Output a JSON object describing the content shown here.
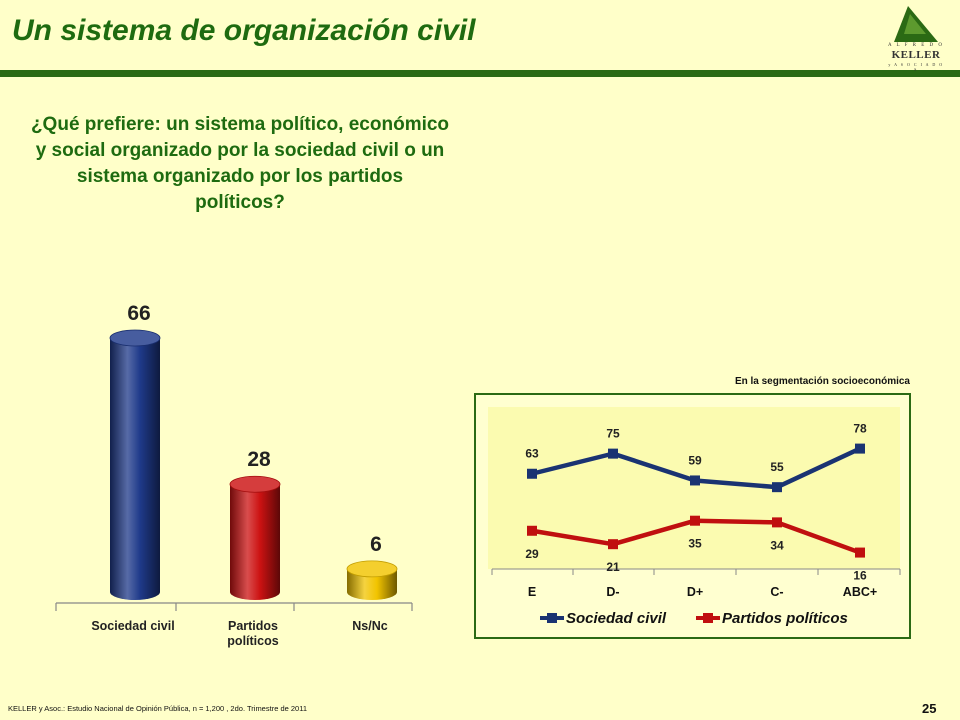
{
  "header": {
    "title": "Un sistema de organización civil",
    "logo": {
      "top": "A L F R E D O",
      "main": "KELLER",
      "sub": "y  A S O C I A D O S"
    }
  },
  "question": "¿Qué prefiere: un sistema político, económico y social organizado por la sociedad civil o un sistema organizado por los partidos políticos?",
  "chart_data": [
    {
      "type": "bar",
      "categories": [
        "Sociedad civil",
        "Partidos políticos",
        "Ns/Nc"
      ],
      "values": [
        66,
        28,
        6
      ],
      "colors": [
        "#1f3a8a",
        "#cc1212",
        "#f2c400"
      ]
    },
    {
      "type": "line",
      "title": "En la segmentación socioeconómica",
      "categories": [
        "E",
        "D-",
        "D+",
        "C-",
        "ABC+"
      ],
      "series": [
        {
          "name": "Sociedad civil",
          "values": [
            63,
            75,
            59,
            55,
            78
          ],
          "color": "#1a3372"
        },
        {
          "name": "Partidos políticos",
          "values": [
            29,
            21,
            35,
            34,
            16
          ],
          "color": "#c00f0f"
        }
      ],
      "legend": "bottom",
      "grid": false
    }
  ],
  "footer": {
    "source": "KELLER y Asoc.: Estudio Nacional de Opinión Pública, n = 1,200  , 2do. Trimestre de 2011",
    "page": "25"
  }
}
